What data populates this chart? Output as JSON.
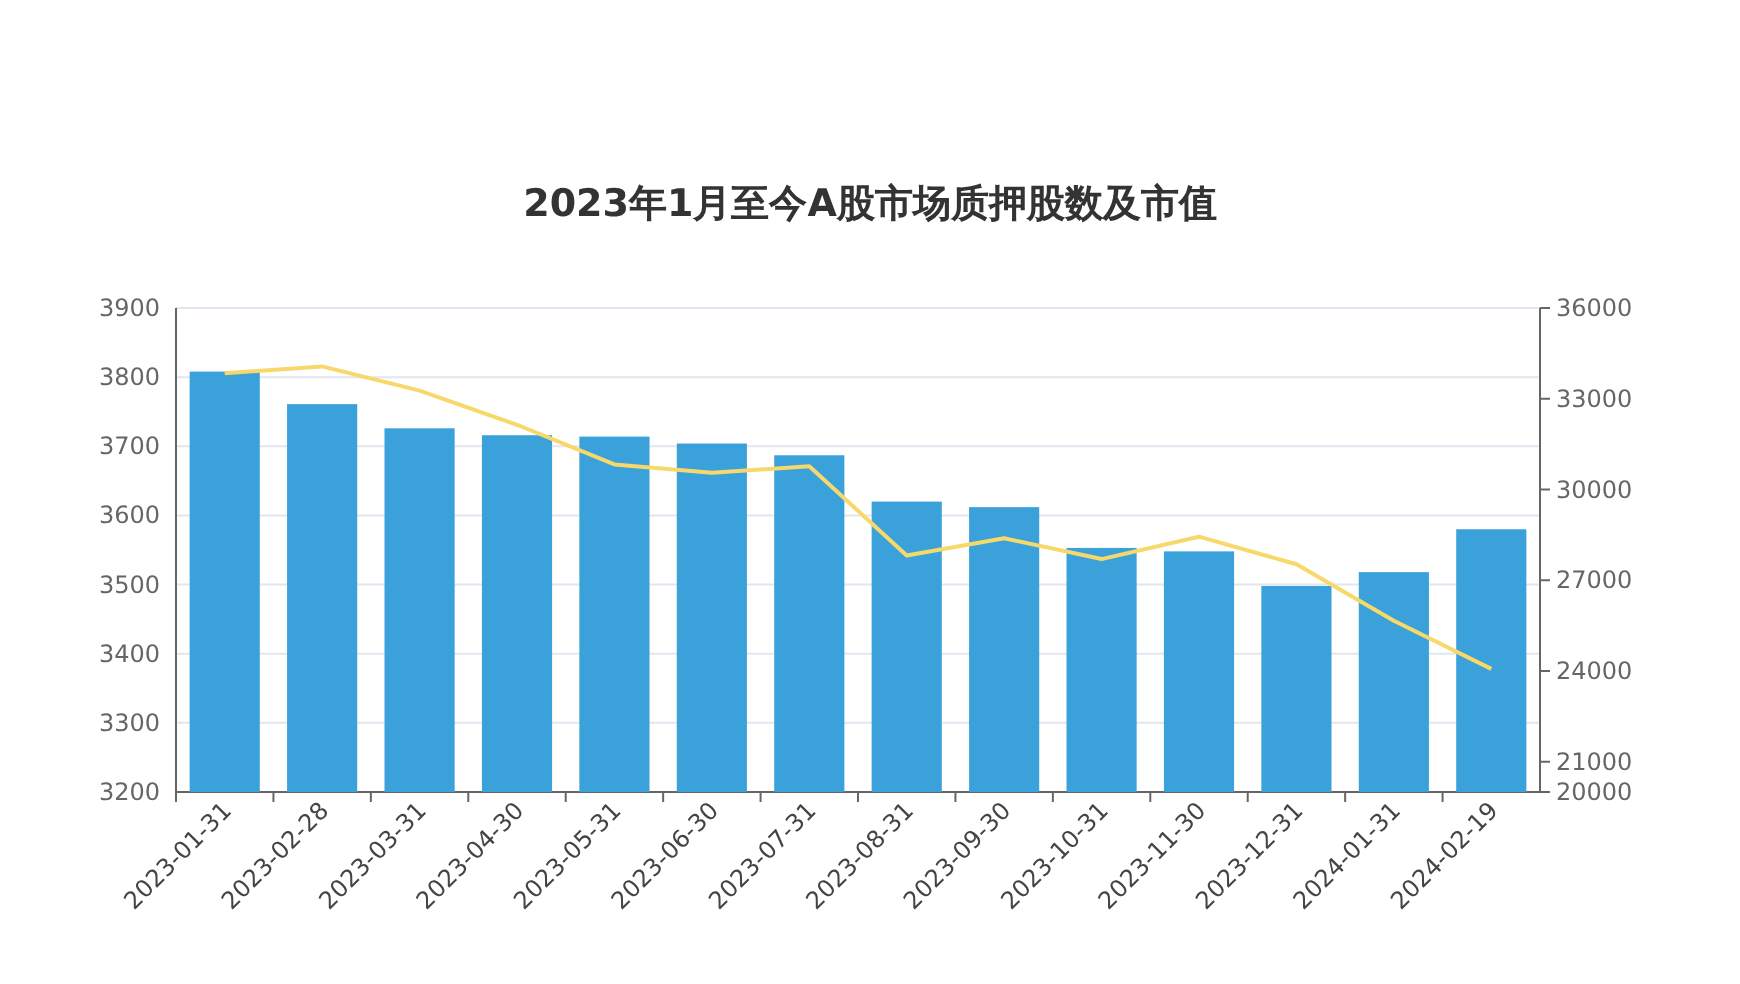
{
  "chart_data": {
    "type": "bar",
    "title": "2023年1月至今A股市场质押股数及市值",
    "categories": [
      "2023-01-31",
      "2023-02-28",
      "2023-03-31",
      "2023-04-30",
      "2023-05-31",
      "2023-06-30",
      "2023-07-31",
      "2023-08-31",
      "2023-09-30",
      "2023-10-31",
      "2023-11-30",
      "2023-12-31",
      "2024-01-31",
      "2024-02-19"
    ],
    "series": [
      {
        "color": "#3ba1da",
        "values": [
          3808,
          3761,
          3726,
          3716,
          3714,
          3704,
          3687,
          3620,
          3612,
          3553,
          3548,
          3498,
          3518,
          3580
        ]
      },
      {
        "type": "line",
        "axis": "y2",
        "color": "#f7d86a",
        "values": [
          33840,
          34070,
          33270,
          32140,
          30830,
          30550,
          30770,
          27820,
          28390,
          27700,
          28440,
          27530,
          25660,
          24070
        ]
      }
    ],
    "ylim": [
      3200,
      3900
    ],
    "yticks": [
      3200,
      3300,
      3400,
      3500,
      3600,
      3700,
      3800,
      3900
    ],
    "y2lim": [
      20000,
      36000
    ],
    "y2ticks": [
      20000,
      21000,
      24000,
      27000,
      30000,
      33000,
      36000
    ],
    "grid": "y"
  }
}
